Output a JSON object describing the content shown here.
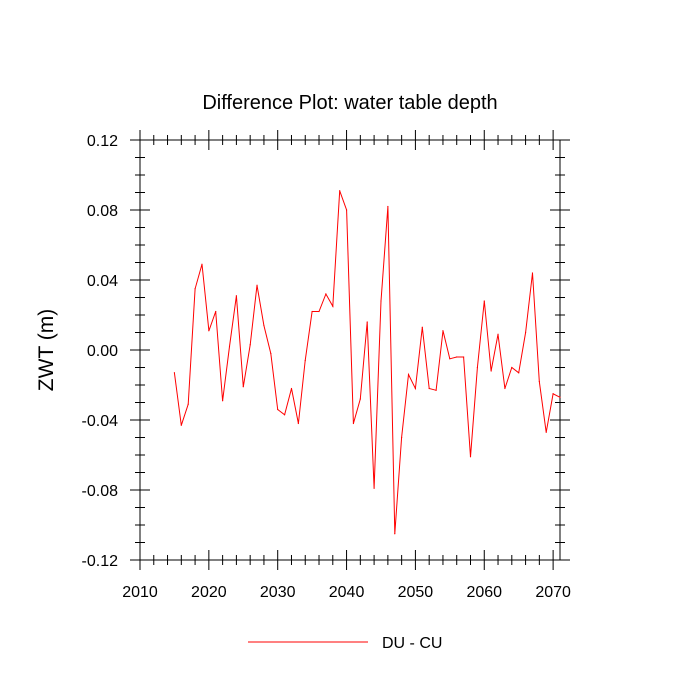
{
  "chart_data": {
    "type": "line",
    "title": "Difference Plot: water table depth",
    "xlabel": "",
    "ylabel": "ZWT  (m)",
    "xlim": [
      2010,
      2071
    ],
    "ylim": [
      -0.12,
      0.12
    ],
    "x_ticks": [
      2010,
      2020,
      2030,
      2040,
      2050,
      2060,
      2070
    ],
    "x_tick_labels": [
      "2010",
      "2020",
      "2030",
      "2040",
      "2050",
      "2060",
      "2070"
    ],
    "y_ticks": [
      -0.12,
      -0.08,
      -0.04,
      0.0,
      0.04,
      0.08,
      0.12
    ],
    "y_tick_labels": [
      "-0.12",
      "-0.08",
      "-0.04",
      "0.00",
      "0.04",
      "0.08",
      "0.12"
    ],
    "grid": false,
    "legend": {
      "position": "bottom-center"
    },
    "series": [
      {
        "name": "DU - CU",
        "color": "#ff0000",
        "x": [
          2015,
          2016,
          2017,
          2018,
          2019,
          2020,
          2021,
          2022,
          2023,
          2024,
          2025,
          2026,
          2027,
          2028,
          2029,
          2030,
          2031,
          2032,
          2033,
          2034,
          2035,
          2036,
          2037,
          2038,
          2039,
          2040,
          2041,
          2042,
          2043,
          2044,
          2045,
          2046,
          2047,
          2048,
          2049,
          2050,
          2051,
          2052,
          2053,
          2054,
          2055,
          2056,
          2057,
          2058,
          2059,
          2060,
          2061,
          2062,
          2063,
          2064,
          2065,
          2066,
          2067,
          2068,
          2069,
          2070,
          2071
        ],
        "values": [
          -0.013,
          -0.043,
          -0.031,
          0.035,
          0.049,
          0.011,
          0.022,
          -0.029,
          0.002,
          0.031,
          -0.021,
          0.003,
          0.037,
          0.014,
          -0.002,
          -0.034,
          -0.037,
          -0.022,
          -0.042,
          -0.006,
          0.022,
          0.022,
          0.032,
          0.025,
          0.091,
          0.08,
          -0.042,
          -0.028,
          0.016,
          -0.079,
          0.028,
          0.082,
          -0.105,
          -0.05,
          -0.014,
          -0.022,
          0.013,
          -0.022,
          -0.023,
          0.011,
          -0.005,
          -0.004,
          -0.004,
          -0.061,
          -0.01,
          0.028,
          -0.012,
          0.009,
          -0.022,
          -0.01,
          -0.013,
          0.01,
          0.044,
          -0.018,
          -0.047,
          -0.025,
          -0.027
        ]
      }
    ]
  }
}
